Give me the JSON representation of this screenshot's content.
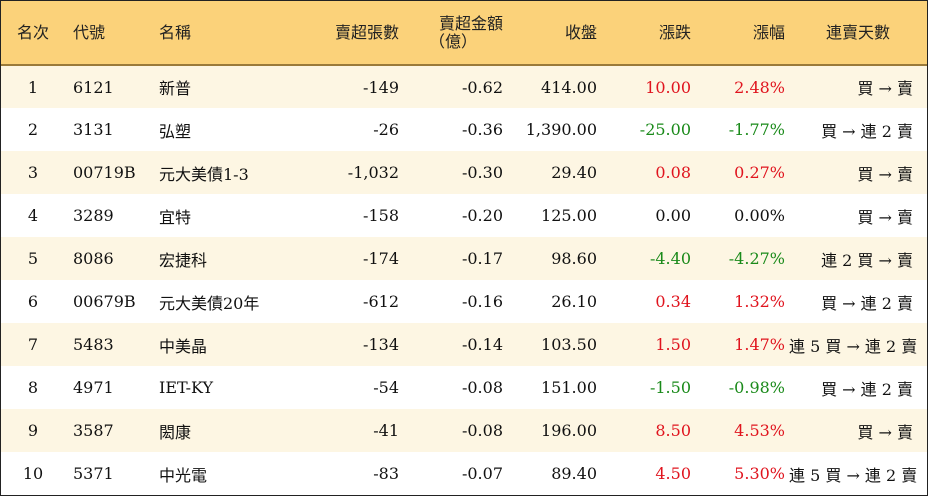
{
  "colors": {
    "header_bg": "#fbd27a",
    "odd_row_bg": "#fdf6e3",
    "up": "#e0141e",
    "down": "#1a8a1a"
  },
  "headers": {
    "rank": "名次",
    "code": "代號",
    "name": "名稱",
    "vol": "賣超張數",
    "amt_line1": "賣超金額",
    "amt_line2": "（億）",
    "close": "收盤",
    "chg": "漲跌",
    "pct": "漲幅",
    "streak": "連賣天數"
  },
  "rows": [
    {
      "rank": "1",
      "code": "6121",
      "name": "新普",
      "vol": "-149",
      "amt": "-0.62",
      "close": "414.00",
      "chg": "10.00",
      "pct": "2.48%",
      "dir": "up",
      "streak": "買 → 賣"
    },
    {
      "rank": "2",
      "code": "3131",
      "name": "弘塑",
      "vol": "-26",
      "amt": "-0.36",
      "close": "1,390.00",
      "chg": "-25.00",
      "pct": "-1.77%",
      "dir": "down",
      "streak": "買 → 連 2 賣"
    },
    {
      "rank": "3",
      "code": "00719B",
      "name": "元大美債1-3",
      "vol": "-1,032",
      "amt": "-0.30",
      "close": "29.40",
      "chg": "0.08",
      "pct": "0.27%",
      "dir": "up",
      "streak": "買 → 賣"
    },
    {
      "rank": "4",
      "code": "3289",
      "name": "宜特",
      "vol": "-158",
      "amt": "-0.20",
      "close": "125.00",
      "chg": "0.00",
      "pct": "0.00%",
      "dir": "flat",
      "streak": "買 → 賣"
    },
    {
      "rank": "5",
      "code": "8086",
      "name": "宏捷科",
      "vol": "-174",
      "amt": "-0.17",
      "close": "98.60",
      "chg": "-4.40",
      "pct": "-4.27%",
      "dir": "down",
      "streak": "連 2 買 → 賣"
    },
    {
      "rank": "6",
      "code": "00679B",
      "name": "元大美債20年",
      "vol": "-612",
      "amt": "-0.16",
      "close": "26.10",
      "chg": "0.34",
      "pct": "1.32%",
      "dir": "up",
      "streak": "買 → 連 2 賣"
    },
    {
      "rank": "7",
      "code": "5483",
      "name": "中美晶",
      "vol": "-134",
      "amt": "-0.14",
      "close": "103.50",
      "chg": "1.50",
      "pct": "1.47%",
      "dir": "up",
      "streak": "連 5 買 → 連 2 賣"
    },
    {
      "rank": "8",
      "code": "4971",
      "name": "IET-KY",
      "vol": "-54",
      "amt": "-0.08",
      "close": "151.00",
      "chg": "-1.50",
      "pct": "-0.98%",
      "dir": "down",
      "streak": "買 → 連 2 賣"
    },
    {
      "rank": "9",
      "code": "3587",
      "name": "閎康",
      "vol": "-41",
      "amt": "-0.08",
      "close": "196.00",
      "chg": "8.50",
      "pct": "4.53%",
      "dir": "up",
      "streak": "買 → 賣"
    },
    {
      "rank": "10",
      "code": "5371",
      "name": "中光電",
      "vol": "-83",
      "amt": "-0.07",
      "close": "89.40",
      "chg": "4.50",
      "pct": "5.30%",
      "dir": "up",
      "streak": "連 5 買 → 連 2 賣"
    }
  ]
}
